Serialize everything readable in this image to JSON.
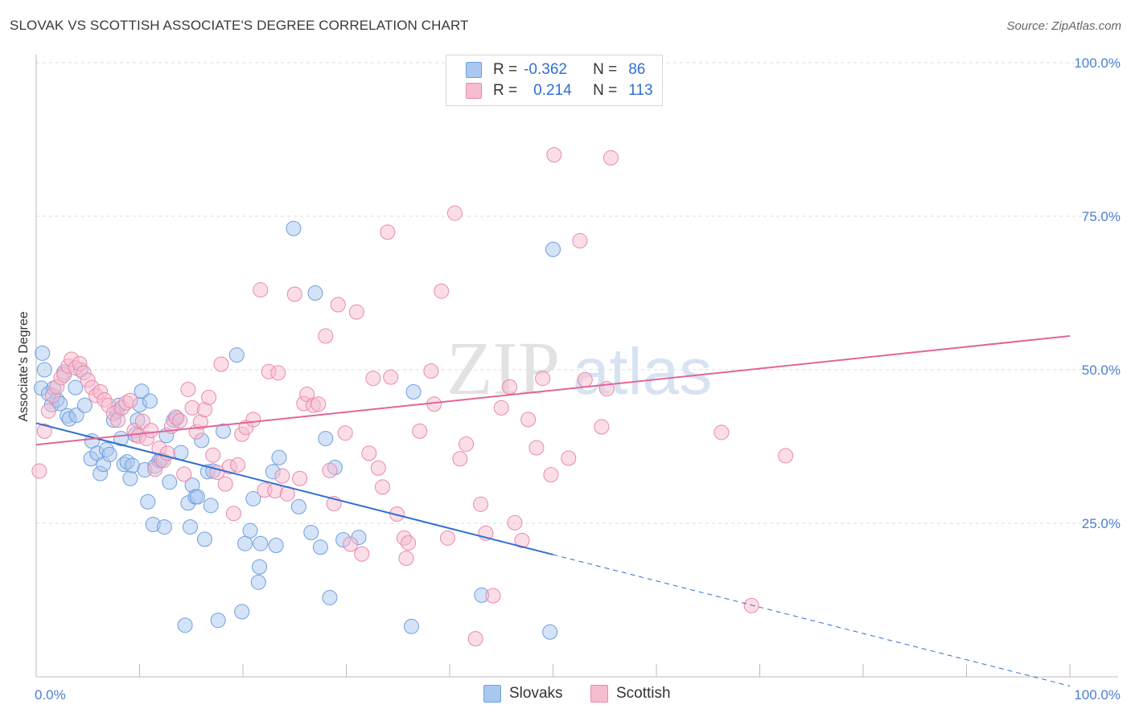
{
  "header": {
    "title": "SLOVAK VS SCOTTISH ASSOCIATE'S DEGREE CORRELATION CHART",
    "source": "Source: ZipAtlas.com"
  },
  "watermark": {
    "zip": "ZIP",
    "atlas": "atlas"
  },
  "legend": {
    "rows": [
      {
        "r_label": "R =",
        "r_value": "-0.362",
        "n_label": "N =",
        "n_value": "86",
        "color": "#a9c8f0",
        "border": "#6f9fe0"
      },
      {
        "r_label": "R =",
        "r_value": "0.214",
        "n_label": "N =",
        "n_value": "113",
        "color": "#f7bcd0",
        "border": "#e88aaa"
      }
    ]
  },
  "bottom_legend": {
    "items": [
      {
        "label": "Slovaks",
        "color": "#a9c8f0",
        "border": "#6f9fe0"
      },
      {
        "label": "Scottish",
        "color": "#f7bcd0",
        "border": "#e88aaa"
      }
    ]
  },
  "chart_data": {
    "type": "scatter",
    "title": "SLOVAK VS SCOTTISH ASSOCIATE'S DEGREE CORRELATION CHART",
    "xlabel": "",
    "ylabel": "Associate's Degree",
    "xlim": [
      0,
      100
    ],
    "ylim": [
      0,
      100
    ],
    "x_tick_labels": [
      "0.0%",
      "100.0%"
    ],
    "y_ticks": [
      25,
      50,
      75,
      100
    ],
    "y_tick_labels": [
      "25.0%",
      "50.0%",
      "75.0%",
      "100.0%"
    ],
    "grid": true,
    "legend_position": "top-center",
    "series": [
      {
        "name": "Slovaks",
        "color": "#6f9fe0",
        "fill": "#a9c8f0",
        "trend": {
          "x0": 0,
          "y0": 41.3,
          "x1": 50,
          "y1": 19.9,
          "dash_to_x": 100,
          "color": "#2f6fd0"
        },
        "points": [
          [
            0.5,
            47
          ],
          [
            0.6,
            52.7
          ],
          [
            0.8,
            50
          ],
          [
            1.2,
            46.1
          ],
          [
            1.5,
            44.3
          ],
          [
            1.7,
            47
          ],
          [
            2.0,
            45.1
          ],
          [
            2.3,
            44.5
          ],
          [
            2.7,
            49.6
          ],
          [
            3.0,
            42.5
          ],
          [
            3.2,
            42
          ],
          [
            3.8,
            47.1
          ],
          [
            3.9,
            42.6
          ],
          [
            4.3,
            50
          ],
          [
            4.7,
            44.2
          ],
          [
            5.3,
            35.5
          ],
          [
            5.4,
            38.4
          ],
          [
            5.9,
            36.4
          ],
          [
            6.2,
            33.1
          ],
          [
            6.5,
            34.6
          ],
          [
            6.8,
            37
          ],
          [
            7.1,
            36.2
          ],
          [
            7.5,
            41.8
          ],
          [
            7.8,
            43.2
          ],
          [
            8.0,
            44.2
          ],
          [
            8.2,
            38.8
          ],
          [
            8.5,
            34.6
          ],
          [
            8.8,
            35
          ],
          [
            9.1,
            32.3
          ],
          [
            9.3,
            34.4
          ],
          [
            9.6,
            39.4
          ],
          [
            9.8,
            41.8
          ],
          [
            10.0,
            44.3
          ],
          [
            10.2,
            46.5
          ],
          [
            10.5,
            33.7
          ],
          [
            10.8,
            28.5
          ],
          [
            11.0,
            44.9
          ],
          [
            11.3,
            24.8
          ],
          [
            11.5,
            34.3
          ],
          [
            11.9,
            35.2
          ],
          [
            12.1,
            35.3
          ],
          [
            12.4,
            24.4
          ],
          [
            12.6,
            39.3
          ],
          [
            12.9,
            31.7
          ],
          [
            13.3,
            41.8
          ],
          [
            13.6,
            42.1
          ],
          [
            14.0,
            36.5
          ],
          [
            14.4,
            8.4
          ],
          [
            14.7,
            28.3
          ],
          [
            14.9,
            24.4
          ],
          [
            15.1,
            31.2
          ],
          [
            15.4,
            29.3
          ],
          [
            15.6,
            29.3
          ],
          [
            16.0,
            38.5
          ],
          [
            16.3,
            22.4
          ],
          [
            16.6,
            33.4
          ],
          [
            16.9,
            27.9
          ],
          [
            17.1,
            33.5
          ],
          [
            17.6,
            9.2
          ],
          [
            18.1,
            40
          ],
          [
            19.4,
            52.4
          ],
          [
            19.9,
            10.6
          ],
          [
            20.2,
            21.7
          ],
          [
            20.7,
            23.8
          ],
          [
            21.0,
            29
          ],
          [
            21.5,
            15.4
          ],
          [
            21.6,
            17.9
          ],
          [
            21.7,
            21.7
          ],
          [
            22.9,
            33.4
          ],
          [
            23.2,
            21.4
          ],
          [
            23.5,
            35.7
          ],
          [
            24.9,
            73
          ],
          [
            25.4,
            27.7
          ],
          [
            26.6,
            23.5
          ],
          [
            27.0,
            62.5
          ],
          [
            27.5,
            21.1
          ],
          [
            28.0,
            38.8
          ],
          [
            28.4,
            12.9
          ],
          [
            28.9,
            34.1
          ],
          [
            29.7,
            22.3
          ],
          [
            31.2,
            22.7
          ],
          [
            36.3,
            8.2
          ],
          [
            36.5,
            46.4
          ],
          [
            43.1,
            13.3
          ],
          [
            49.7,
            7.3
          ],
          [
            50,
            69.6
          ]
        ]
      },
      {
        "name": "Scottish",
        "color": "#e88aaa",
        "fill": "#f7bcd0",
        "trend": {
          "x0": 0,
          "y0": 37.8,
          "x1": 100,
          "y1": 55.5,
          "color": "#e0659a"
        },
        "points": [
          [
            0.3,
            33.5
          ],
          [
            0.8,
            40
          ],
          [
            1.2,
            43.3
          ],
          [
            1.6,
            45.8
          ],
          [
            2.0,
            47.2
          ],
          [
            2.4,
            48.7
          ],
          [
            2.7,
            49.2
          ],
          [
            3.1,
            50.6
          ],
          [
            3.4,
            51.7
          ],
          [
            3.8,
            50.3
          ],
          [
            4.2,
            51
          ],
          [
            4.6,
            49.5
          ],
          [
            5.0,
            48.3
          ],
          [
            5.4,
            47.1
          ],
          [
            5.8,
            45.8
          ],
          [
            6.2,
            46.4
          ],
          [
            6.6,
            45.1
          ],
          [
            7.0,
            44.2
          ],
          [
            7.5,
            42.9
          ],
          [
            7.9,
            41.8
          ],
          [
            8.3,
            43.8
          ],
          [
            8.7,
            44.6
          ],
          [
            9.1,
            45
          ],
          [
            9.5,
            40.1
          ],
          [
            9.9,
            39.2
          ],
          [
            10.3,
            41.6
          ],
          [
            10.7,
            38.8
          ],
          [
            11.1,
            40.1
          ],
          [
            11.5,
            33.8
          ],
          [
            11.9,
            37.2
          ],
          [
            12.3,
            35.2
          ],
          [
            12.7,
            36.4
          ],
          [
            13.1,
            40.8
          ],
          [
            13.5,
            42.3
          ],
          [
            13.9,
            41.7
          ],
          [
            14.3,
            33
          ],
          [
            14.7,
            46.8
          ],
          [
            15.1,
            43.8
          ],
          [
            15.5,
            39.9
          ],
          [
            15.9,
            41.5
          ],
          [
            16.3,
            43.5
          ],
          [
            16.7,
            45.5
          ],
          [
            17.1,
            36.1
          ],
          [
            17.5,
            33.3
          ],
          [
            17.9,
            50.9
          ],
          [
            18.3,
            31.4
          ],
          [
            18.7,
            34.2
          ],
          [
            19.1,
            26.6
          ],
          [
            19.5,
            34.5
          ],
          [
            19.9,
            39.5
          ],
          [
            20.3,
            40.6
          ],
          [
            21.0,
            41.9
          ],
          [
            21.7,
            63
          ],
          [
            22.1,
            30.4
          ],
          [
            22.5,
            49.7
          ],
          [
            23.1,
            30.3
          ],
          [
            23.4,
            49.5
          ],
          [
            23.8,
            32.7
          ],
          [
            24.3,
            29.8
          ],
          [
            25.0,
            62.3
          ],
          [
            25.5,
            32.3
          ],
          [
            25.9,
            44.5
          ],
          [
            26.2,
            46
          ],
          [
            26.8,
            44.2
          ],
          [
            27.3,
            44.4
          ],
          [
            28.0,
            55.5
          ],
          [
            28.4,
            33.6
          ],
          [
            28.8,
            28.2
          ],
          [
            29.2,
            60.6
          ],
          [
            29.9,
            39.7
          ],
          [
            30.4,
            21.6
          ],
          [
            31.0,
            59.4
          ],
          [
            31.5,
            20
          ],
          [
            32.2,
            36.4
          ],
          [
            32.6,
            48.6
          ],
          [
            33.1,
            34
          ],
          [
            33.5,
            30.9
          ],
          [
            34.0,
            72.4
          ],
          [
            34.3,
            48.8
          ],
          [
            34.9,
            26.5
          ],
          [
            35.6,
            22.6
          ],
          [
            35.8,
            19.3
          ],
          [
            36.0,
            21.8
          ],
          [
            37.1,
            40
          ],
          [
            38.2,
            49.8
          ],
          [
            38.5,
            44.4
          ],
          [
            39.2,
            62.8
          ],
          [
            39.8,
            22.6
          ],
          [
            40.5,
            75.5
          ],
          [
            41.0,
            35.5
          ],
          [
            41.6,
            37.9
          ],
          [
            42.5,
            6.2
          ],
          [
            43.0,
            28.1
          ],
          [
            43.5,
            23.4
          ],
          [
            44.2,
            13.2
          ],
          [
            45.0,
            43.8
          ],
          [
            45.8,
            47.2
          ],
          [
            46.3,
            25.1
          ],
          [
            47.0,
            22.2
          ],
          [
            47.6,
            41.9
          ],
          [
            48.4,
            37.3
          ],
          [
            49.0,
            48.6
          ],
          [
            49.8,
            32.9
          ],
          [
            50.1,
            85
          ],
          [
            51.5,
            35.6
          ],
          [
            52.6,
            71
          ],
          [
            53.1,
            48.4
          ],
          [
            54.7,
            40.7
          ],
          [
            55.2,
            46.9
          ],
          [
            55.6,
            84.5
          ],
          [
            66.3,
            39.8
          ],
          [
            69.2,
            11.6
          ],
          [
            72.5,
            36
          ]
        ]
      }
    ]
  }
}
